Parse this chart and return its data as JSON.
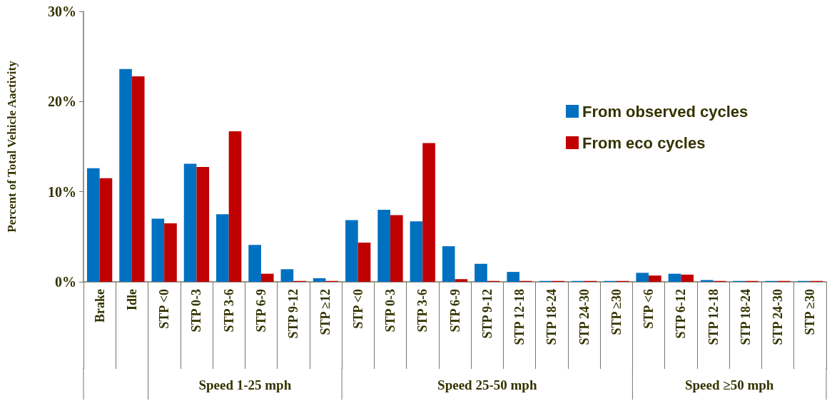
{
  "chart_data": {
    "type": "bar",
    "ylabel": "Percent of Total Vehicle Aactivity",
    "categories": [
      "Brake",
      "Idle",
      "STP <0",
      "STP 0-3",
      "STP 3-6",
      "STP 6-9",
      "STP 9-12",
      "STP ≥12",
      "STP <0",
      "STP 0-3",
      "STP 3-6",
      "STP 6-9",
      "STP 9-12",
      "STP 12-18",
      "STP 18-24",
      "STP 24-30",
      "STP ≥30",
      "STP <6",
      "STP 6-12",
      "STP 12-18",
      "STP 18-24",
      "STP 24-30",
      "STP ≥30"
    ],
    "series": [
      {
        "name": "From observed cycles",
        "color": "#0070c0",
        "values": [
          12.6,
          23.6,
          7.0,
          13.1,
          7.5,
          4.1,
          1.4,
          0.4,
          6.85,
          8.0,
          6.7,
          3.95,
          2.0,
          1.1,
          0.1,
          0.1,
          0.1,
          1.0,
          0.9,
          0.2,
          0.1,
          0.1,
          0.1
        ]
      },
      {
        "name": "From eco cycles",
        "color": "#c00000",
        "values": [
          11.5,
          22.8,
          6.5,
          12.75,
          16.7,
          0.9,
          0.1,
          0.1,
          4.35,
          7.4,
          15.4,
          0.3,
          0.1,
          0.1,
          0.1,
          0.1,
          0.1,
          0.7,
          0.8,
          0.1,
          0.1,
          0.1,
          0.1
        ]
      }
    ],
    "ylim": [
      0,
      30
    ],
    "yticks": [
      {
        "value": 0,
        "label": "0%"
      },
      {
        "value": 10,
        "label": "10%"
      },
      {
        "value": 20,
        "label": "20%"
      },
      {
        "value": 30,
        "label": "30%"
      }
    ],
    "grid": false,
    "legend": "top right",
    "annotations": [
      "Speed 1-25 mph",
      "Speed 25-50 mph",
      "Speed ≥50 mph"
    ]
  }
}
